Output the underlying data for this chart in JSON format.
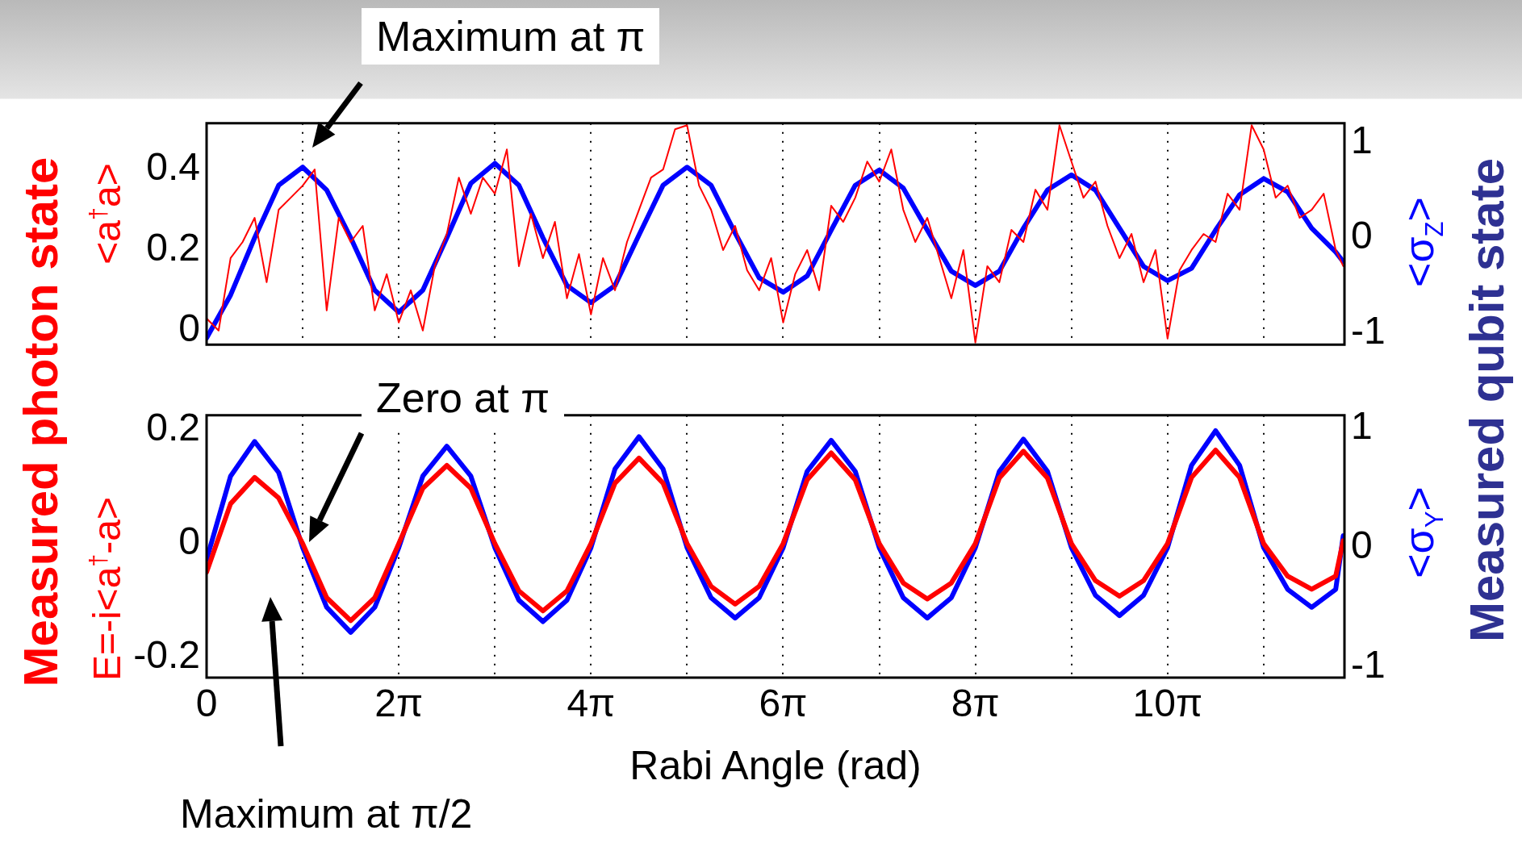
{
  "chart_data": [
    {
      "type": "line",
      "ylabel": "<a$^{†}$a>",
      "y2label": "<σ$_{Z}$>",
      "annotations": [
        "Maximum at π",
        "Measured photon state",
        "Measured qubit state"
      ],
      "xlim": [
        0,
        37.2
      ],
      "ylim": [
        -0.035,
        0.515
      ],
      "y2lim": [
        -1.12,
        1.2
      ],
      "xticks": [
        {
          "value": 0,
          "label": null
        },
        {
          "value": 3.1416,
          "label": null
        },
        {
          "value": 6.2832,
          "label": null
        },
        {
          "value": 9.4248,
          "label": null
        },
        {
          "value": 12.5664,
          "label": null
        },
        {
          "value": 15.708,
          "label": null
        },
        {
          "value": 18.8496,
          "label": null
        },
        {
          "value": 21.9911,
          "label": null
        },
        {
          "value": 25.1327,
          "label": null
        },
        {
          "value": 28.2743,
          "label": null
        },
        {
          "value": 31.4159,
          "label": null
        },
        {
          "value": 34.5575,
          "label": null
        }
      ],
      "yticks": [
        0,
        0.2,
        0.4
      ],
      "y2ticks": [
        -1,
        0,
        1
      ],
      "grid": "x",
      "marker": "none",
      "line_style": "solid",
      "tick_labels": "y",
      "series": [
        {
          "color": "#ff0000",
          "x": [
            0,
            0.393,
            0.785,
            1.178,
            1.571,
            1.963,
            2.356,
            2.749,
            3.142,
            3.534,
            3.927,
            4.32,
            4.712,
            5.105,
            5.498,
            5.89,
            6.283,
            6.676,
            7.069,
            7.461,
            7.854,
            8.247,
            8.639,
            9.032,
            9.425,
            9.817,
            10.21,
            10.603,
            10.996,
            11.388,
            11.781,
            12.174,
            12.566,
            12.959,
            13.352,
            13.744,
            14.137,
            14.53,
            14.923,
            15.315,
            15.708,
            16.101,
            16.493,
            16.886,
            17.279,
            17.671,
            18.064,
            18.457,
            18.85,
            19.242,
            19.635,
            20.028,
            20.42,
            20.813,
            21.206,
            21.598,
            21.991,
            22.384,
            22.777,
            23.169,
            23.562,
            23.955,
            24.347,
            24.74,
            25.133,
            25.525,
            25.918,
            26.311,
            26.704,
            27.096,
            27.489,
            27.882,
            28.274,
            28.667,
            29.06,
            29.452,
            29.845,
            30.238,
            30.631,
            31.023,
            31.416,
            31.809,
            32.201,
            32.594,
            32.987,
            33.379,
            33.772,
            34.165,
            34.558,
            34.95,
            35.343,
            35.736,
            36.128,
            36.521,
            36.914,
            37.16
          ],
          "values": [
            0.03,
            0,
            0.18,
            0.22,
            0.28,
            0.12,
            0.3,
            0.33,
            0.36,
            0.4,
            0.05,
            0.28,
            0.22,
            0.26,
            0.05,
            0.14,
            0.02,
            0.1,
            0,
            0.16,
            0.24,
            0.38,
            0.29,
            0.38,
            0.34,
            0.45,
            0.16,
            0.29,
            0.18,
            0.27,
            0.08,
            0.19,
            0.04,
            0.18,
            0.1,
            0.22,
            0.3,
            0.38,
            0.4,
            0.5,
            0.51,
            0.36,
            0.3,
            0.2,
            0.26,
            0.15,
            0.1,
            0.18,
            0.02,
            0.14,
            0.2,
            0.1,
            0.31,
            0.27,
            0.33,
            0.42,
            0.37,
            0.45,
            0.3,
            0.22,
            0.28,
            0.18,
            0.08,
            0.2,
            -0.03,
            0.16,
            0.12,
            0.25,
            0.22,
            0.35,
            0.3,
            0.51,
            0.42,
            0.33,
            0.37,
            0.26,
            0.18,
            0.24,
            0.12,
            0.2,
            -0.02,
            0.15,
            0.2,
            0.24,
            0.22,
            0.34,
            0.3,
            0.51,
            0.45,
            0.33,
            0.36,
            0.28,
            0.3,
            0.34,
            0.2,
            0.16
          ]
        },
        {
          "color": "#0000ff",
          "axis": "y2",
          "x": [
            0,
            0.785,
            1.571,
            2.356,
            3.142,
            3.927,
            4.712,
            5.498,
            6.283,
            7.069,
            7.854,
            8.639,
            9.425,
            10.21,
            10.996,
            11.781,
            12.566,
            13.352,
            14.137,
            14.923,
            15.708,
            16.493,
            17.279,
            18.064,
            18.85,
            19.635,
            20.42,
            21.206,
            21.991,
            22.777,
            23.562,
            24.347,
            25.133,
            25.918,
            26.704,
            27.489,
            28.274,
            29.06,
            29.845,
            30.631,
            31.416,
            32.201,
            32.987,
            33.772,
            34.558,
            35.343,
            36.128,
            36.914,
            37.16
          ],
          "values": [
            -1.05,
            -0.6,
            0,
            0.55,
            0.74,
            0.5,
            0,
            -0.55,
            -0.78,
            -0.55,
            0,
            0.57,
            0.78,
            0.55,
            0,
            -0.5,
            -0.68,
            -0.5,
            0.03,
            0.55,
            0.74,
            0.55,
            0.05,
            -0.42,
            -0.57,
            -0.4,
            0.08,
            0.55,
            0.71,
            0.52,
            0.08,
            -0.35,
            -0.5,
            -0.35,
            0.1,
            0.5,
            0.66,
            0.5,
            0.1,
            -0.3,
            -0.45,
            -0.32,
            0.08,
            0.45,
            0.62,
            0.48,
            0.1,
            -0.15,
            -0.25
          ]
        }
      ]
    },
    {
      "type": "line",
      "ylabel": "E=-i<a$^{†}$-a>",
      "y2label": "<σ$_{Y}$>",
      "xlabel": "Rabi Angle (rad)",
      "annotations": [
        "Zero at π",
        "Maximum at π/2"
      ],
      "xlim": [
        0,
        37.2
      ],
      "ylim": [
        -0.235,
        0.225
      ],
      "y2lim": [
        -1.09,
        1.11
      ],
      "xticks": [
        {
          "value": 0,
          "label": "0"
        },
        {
          "value": 3.1416,
          "label": null
        },
        {
          "value": 6.2832,
          "label": "2π"
        },
        {
          "value": 9.4248,
          "label": null
        },
        {
          "value": 12.5664,
          "label": "4π"
        },
        {
          "value": 15.708,
          "label": null
        },
        {
          "value": 18.8496,
          "label": "6π"
        },
        {
          "value": 21.9911,
          "label": null
        },
        {
          "value": 25.1327,
          "label": "8π"
        },
        {
          "value": 28.2743,
          "label": null
        },
        {
          "value": 31.4159,
          "label": "10π"
        },
        {
          "value": 34.5575,
          "label": null
        }
      ],
      "yticks": [
        -0.2,
        0,
        0.2
      ],
      "y2ticks": [
        -1,
        0,
        1
      ],
      "grid": "x",
      "marker": "none",
      "line_style": "solid",
      "x": [
        0,
        0.785,
        1.571,
        2.356,
        3.142,
        3.927,
        4.712,
        5.498,
        6.283,
        7.069,
        7.854,
        8.639,
        9.425,
        10.21,
        10.996,
        11.781,
        12.566,
        13.352,
        14.137,
        14.923,
        15.708,
        16.493,
        17.279,
        18.064,
        18.85,
        19.635,
        20.42,
        21.206,
        21.991,
        22.777,
        23.562,
        24.347,
        25.133,
        25.918,
        26.704,
        27.489,
        28.274,
        29.06,
        29.845,
        30.631,
        31.416,
        32.201,
        32.987,
        33.772,
        34.558,
        35.343,
        36.128,
        36.914,
        37.16
      ],
      "series": [
        {
          "color": "#ff0000",
          "values": [
            -0.05,
            0.07,
            0.116,
            0.08,
            0,
            -0.095,
            -0.135,
            -0.095,
            0,
            0.097,
            0.137,
            0.097,
            0,
            -0.083,
            -0.118,
            -0.083,
            0,
            0.106,
            0.15,
            0.106,
            0,
            -0.075,
            -0.106,
            -0.075,
            0,
            0.112,
            0.159,
            0.112,
            0,
            -0.069,
            -0.097,
            -0.069,
            0,
            0.115,
            0.162,
            0.115,
            0,
            -0.065,
            -0.092,
            -0.065,
            0,
            0.116,
            0.164,
            0.116,
            0,
            -0.057,
            -0.08,
            -0.057,
            0.005
          ]
        },
        {
          "color": "#0000ff",
          "axis": "y2",
          "values": [
            -0.1,
            0.6,
            0.89,
            0.63,
            0,
            -0.5,
            -0.71,
            -0.5,
            0,
            0.6,
            0.85,
            0.6,
            0,
            -0.44,
            -0.62,
            -0.44,
            0,
            0.66,
            0.93,
            0.66,
            0,
            -0.42,
            -0.59,
            -0.42,
            0,
            0.64,
            0.9,
            0.64,
            0,
            -0.42,
            -0.59,
            -0.42,
            0,
            0.64,
            0.91,
            0.64,
            0,
            -0.4,
            -0.57,
            -0.4,
            0,
            0.69,
            0.98,
            0.69,
            0,
            -0.35,
            -0.5,
            -0.35,
            0.1
          ]
        }
      ]
    }
  ]
}
